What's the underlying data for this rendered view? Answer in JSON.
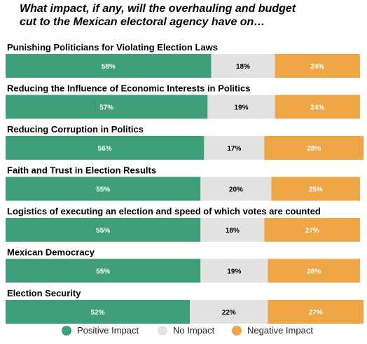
{
  "chart_data": {
    "type": "bar",
    "stacked": true,
    "orientation": "horizontal",
    "title": "What impact, if any, will the overhauling and budget\ncut to the Mexican electoral agency have on…",
    "categories": [
      "Punishing Politicians for Violating Election Laws",
      "Reducing the Influence of Economic Interests in Politics",
      "Reducing Corruption in Politics",
      "Faith and Trust in Election Results",
      "Logistics of executing an election and speed of which votes are counted",
      "Mexican Democracy",
      "Election Security"
    ],
    "series": [
      {
        "name": "Positive Impact",
        "color": "#3f9f7a",
        "values": [
          58,
          57,
          56,
          55,
          55,
          55,
          52
        ],
        "labels": [
          "58%",
          "57%",
          "56%",
          "55%",
          "55%",
          "55%",
          "52%"
        ]
      },
      {
        "name": "No Impact",
        "color": "#e2e2e2",
        "values": [
          18,
          19,
          17,
          20,
          18,
          19,
          22
        ],
        "labels": [
          "18%",
          "19%",
          "17%",
          "20%",
          "18%",
          "19%",
          "22%"
        ]
      },
      {
        "name": "Negative Impact",
        "color": "#eea646",
        "values": [
          24,
          24,
          28,
          25,
          27,
          26,
          27
        ],
        "labels": [
          "24%",
          "24%",
          "28%",
          "25%",
          "27%",
          "26%",
          "27%"
        ]
      }
    ],
    "xlim": [
      0,
      100
    ],
    "grid": false,
    "legend_position": "bottom"
  }
}
